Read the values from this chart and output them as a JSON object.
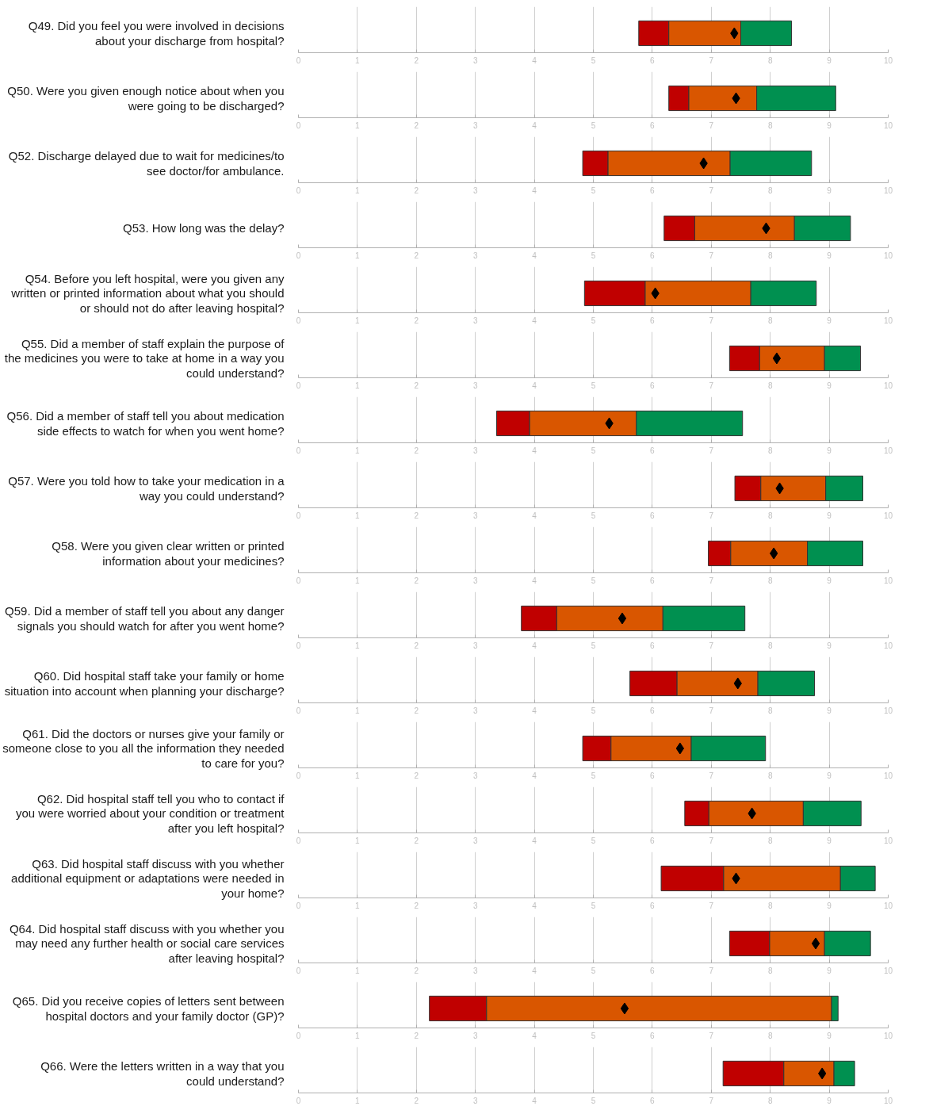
{
  "chart_data": [
    {
      "type": "bar",
      "orientation": "horizontal",
      "categories": [
        "Q49. Did you feel you were involved in decisions about your discharge from hospital?"
      ],
      "series": [
        {
          "color": "#c00000",
          "base": [
            5.77
          ],
          "values": [
            0.51
          ]
        },
        {
          "color": "#d95600",
          "base": [
            6.28
          ],
          "values": [
            1.22
          ]
        },
        {
          "color": "#009050",
          "base": [
            7.5
          ],
          "values": [
            0.86
          ]
        },
        {
          "type": "scatter",
          "marker": "diamond",
          "color": "#000000",
          "values": [
            7.39
          ]
        }
      ],
      "xlim": [
        0,
        10
      ],
      "xticks": [
        0,
        1,
        2,
        3,
        4,
        5,
        6,
        7,
        8,
        9,
        10
      ],
      "grid": "x"
    },
    {
      "type": "bar",
      "orientation": "horizontal",
      "categories": [
        "Q50. Were you given enough notice about when you were going to be discharged?"
      ],
      "series": [
        {
          "color": "#c00000",
          "base": [
            6.28
          ],
          "values": [
            0.34
          ]
        },
        {
          "color": "#d95600",
          "base": [
            6.62
          ],
          "values": [
            1.15
          ]
        },
        {
          "color": "#009050",
          "base": [
            7.77
          ],
          "values": [
            1.34
          ]
        },
        {
          "type": "scatter",
          "marker": "diamond",
          "color": "#000000",
          "values": [
            7.42
          ]
        }
      ],
      "xlim": [
        0,
        10
      ],
      "xticks": [
        0,
        1,
        2,
        3,
        4,
        5,
        6,
        7,
        8,
        9,
        10
      ],
      "grid": "x"
    },
    {
      "type": "bar",
      "orientation": "horizontal",
      "categories": [
        "Q52. Discharge delayed due to wait for medicines/to see doctor/for ambulance."
      ],
      "series": [
        {
          "color": "#c00000",
          "base": [
            4.82
          ],
          "values": [
            0.43
          ]
        },
        {
          "color": "#d95600",
          "base": [
            5.25
          ],
          "values": [
            2.07
          ]
        },
        {
          "color": "#009050",
          "base": [
            7.32
          ],
          "values": [
            1.38
          ]
        },
        {
          "type": "scatter",
          "marker": "diamond",
          "color": "#000000",
          "values": [
            6.87
          ]
        }
      ],
      "xlim": [
        0,
        10
      ],
      "xticks": [
        0,
        1,
        2,
        3,
        4,
        5,
        6,
        7,
        8,
        9,
        10
      ],
      "grid": "x"
    },
    {
      "type": "bar",
      "orientation": "horizontal",
      "categories": [
        "Q53. How long was the delay?"
      ],
      "series": [
        {
          "color": "#c00000",
          "base": [
            6.2
          ],
          "values": [
            0.52
          ]
        },
        {
          "color": "#d95600",
          "base": [
            6.72
          ],
          "values": [
            1.69
          ]
        },
        {
          "color": "#009050",
          "base": [
            8.41
          ],
          "values": [
            0.95
          ]
        },
        {
          "type": "scatter",
          "marker": "diamond",
          "color": "#000000",
          "values": [
            7.93
          ]
        }
      ],
      "xlim": [
        0,
        10
      ],
      "xticks": [
        0,
        1,
        2,
        3,
        4,
        5,
        6,
        7,
        8,
        9,
        10
      ],
      "grid": "x"
    },
    {
      "type": "bar",
      "orientation": "horizontal",
      "categories": [
        "Q54. Before you left hospital, were you given any written or printed information about what you should or should not do after leaving hospital?"
      ],
      "series": [
        {
          "color": "#c00000",
          "base": [
            4.85
          ],
          "values": [
            1.03
          ]
        },
        {
          "color": "#d95600",
          "base": [
            5.88
          ],
          "values": [
            1.79
          ]
        },
        {
          "color": "#009050",
          "base": [
            7.67
          ],
          "values": [
            1.11
          ]
        },
        {
          "type": "scatter",
          "marker": "diamond",
          "color": "#000000",
          "values": [
            6.05
          ]
        }
      ],
      "xlim": [
        0,
        10
      ],
      "xticks": [
        0,
        1,
        2,
        3,
        4,
        5,
        6,
        7,
        8,
        9,
        10
      ],
      "grid": "x"
    },
    {
      "type": "bar",
      "orientation": "horizontal",
      "categories": [
        "Q55. Did a member of staff explain the purpose of the medicines you were to take at home in a way you could understand?"
      ],
      "series": [
        {
          "color": "#c00000",
          "base": [
            7.31
          ],
          "values": [
            0.51
          ]
        },
        {
          "color": "#d95600",
          "base": [
            7.82
          ],
          "values": [
            1.1
          ]
        },
        {
          "color": "#009050",
          "base": [
            8.92
          ],
          "values": [
            0.61
          ]
        },
        {
          "type": "scatter",
          "marker": "diamond",
          "color": "#000000",
          "values": [
            8.11
          ]
        }
      ],
      "xlim": [
        0,
        10
      ],
      "xticks": [
        0,
        1,
        2,
        3,
        4,
        5,
        6,
        7,
        8,
        9,
        10
      ],
      "grid": "x"
    },
    {
      "type": "bar",
      "orientation": "horizontal",
      "categories": [
        "Q56. Did a member of staff tell you about medication side effects to watch for when you went home?"
      ],
      "series": [
        {
          "color": "#c00000",
          "base": [
            3.36
          ],
          "values": [
            0.56
          ]
        },
        {
          "color": "#d95600",
          "base": [
            3.92
          ],
          "values": [
            1.81
          ]
        },
        {
          "color": "#009050",
          "base": [
            5.73
          ],
          "values": [
            1.8
          ]
        },
        {
          "type": "scatter",
          "marker": "diamond",
          "color": "#000000",
          "values": [
            5.27
          ]
        }
      ],
      "xlim": [
        0,
        10
      ],
      "xticks": [
        0,
        1,
        2,
        3,
        4,
        5,
        6,
        7,
        8,
        9,
        10
      ],
      "grid": "x"
    },
    {
      "type": "bar",
      "orientation": "horizontal",
      "categories": [
        "Q57. Were you told how to take your medication in a way you could understand?"
      ],
      "series": [
        {
          "color": "#c00000",
          "base": [
            7.4
          ],
          "values": [
            0.44
          ]
        },
        {
          "color": "#d95600",
          "base": [
            7.84
          ],
          "values": [
            1.1
          ]
        },
        {
          "color": "#009050",
          "base": [
            8.94
          ],
          "values": [
            0.63
          ]
        },
        {
          "type": "scatter",
          "marker": "diamond",
          "color": "#000000",
          "values": [
            8.16
          ]
        }
      ],
      "xlim": [
        0,
        10
      ],
      "xticks": [
        0,
        1,
        2,
        3,
        4,
        5,
        6,
        7,
        8,
        9,
        10
      ],
      "grid": "x"
    },
    {
      "type": "bar",
      "orientation": "horizontal",
      "categories": [
        "Q58. Were you given clear written or printed information about your medicines?"
      ],
      "series": [
        {
          "color": "#c00000",
          "base": [
            6.95
          ],
          "values": [
            0.38
          ]
        },
        {
          "color": "#d95600",
          "base": [
            7.33
          ],
          "values": [
            1.3
          ]
        },
        {
          "color": "#009050",
          "base": [
            8.63
          ],
          "values": [
            0.94
          ]
        },
        {
          "type": "scatter",
          "marker": "diamond",
          "color": "#000000",
          "values": [
            8.06
          ]
        }
      ],
      "xlim": [
        0,
        10
      ],
      "xticks": [
        0,
        1,
        2,
        3,
        4,
        5,
        6,
        7,
        8,
        9,
        10
      ],
      "grid": "x"
    },
    {
      "type": "bar",
      "orientation": "horizontal",
      "categories": [
        "Q59. Did a member of staff tell you about any danger signals you should watch for after you went home?"
      ],
      "series": [
        {
          "color": "#c00000",
          "base": [
            3.78
          ],
          "values": [
            0.6
          ]
        },
        {
          "color": "#d95600",
          "base": [
            4.38
          ],
          "values": [
            1.8
          ]
        },
        {
          "color": "#009050",
          "base": [
            6.18
          ],
          "values": [
            1.39
          ]
        },
        {
          "type": "scatter",
          "marker": "diamond",
          "color": "#000000",
          "values": [
            5.49
          ]
        }
      ],
      "xlim": [
        0,
        10
      ],
      "xticks": [
        0,
        1,
        2,
        3,
        4,
        5,
        6,
        7,
        8,
        9,
        10
      ],
      "grid": "x"
    },
    {
      "type": "bar",
      "orientation": "horizontal",
      "categories": [
        "Q60. Did hospital staff take your family or home situation into account when planning your discharge?"
      ],
      "series": [
        {
          "color": "#c00000",
          "base": [
            5.62
          ],
          "values": [
            0.8
          ]
        },
        {
          "color": "#d95600",
          "base": [
            6.42
          ],
          "values": [
            1.37
          ]
        },
        {
          "color": "#009050",
          "base": [
            7.79
          ],
          "values": [
            0.96
          ]
        },
        {
          "type": "scatter",
          "marker": "diamond",
          "color": "#000000",
          "values": [
            7.45
          ]
        }
      ],
      "xlim": [
        0,
        10
      ],
      "xticks": [
        0,
        1,
        2,
        3,
        4,
        5,
        6,
        7,
        8,
        9,
        10
      ],
      "grid": "x"
    },
    {
      "type": "bar",
      "orientation": "horizontal",
      "categories": [
        "Q61. Did the doctors or nurses give your family or someone close to you all the information they needed to care for you?"
      ],
      "series": [
        {
          "color": "#c00000",
          "base": [
            4.82
          ],
          "values": [
            0.48
          ]
        },
        {
          "color": "#d95600",
          "base": [
            5.3
          ],
          "values": [
            1.36
          ]
        },
        {
          "color": "#009050",
          "base": [
            6.66
          ],
          "values": [
            1.26
          ]
        },
        {
          "type": "scatter",
          "marker": "diamond",
          "color": "#000000",
          "values": [
            6.47
          ]
        }
      ],
      "xlim": [
        0,
        10
      ],
      "xticks": [
        0,
        1,
        2,
        3,
        4,
        5,
        6,
        7,
        8,
        9,
        10
      ],
      "grid": "x"
    },
    {
      "type": "bar",
      "orientation": "horizontal",
      "categories": [
        "Q62. Did hospital staff tell you who to contact if you were worried about your condition or treatment after you left hospital?"
      ],
      "series": [
        {
          "color": "#c00000",
          "base": [
            6.55
          ],
          "values": [
            0.41
          ]
        },
        {
          "color": "#d95600",
          "base": [
            6.96
          ],
          "values": [
            1.6
          ]
        },
        {
          "color": "#009050",
          "base": [
            8.56
          ],
          "values": [
            0.98
          ]
        },
        {
          "type": "scatter",
          "marker": "diamond",
          "color": "#000000",
          "values": [
            7.69
          ]
        }
      ],
      "xlim": [
        0,
        10
      ],
      "xticks": [
        0,
        1,
        2,
        3,
        4,
        5,
        6,
        7,
        8,
        9,
        10
      ],
      "grid": "x"
    },
    {
      "type": "bar",
      "orientation": "horizontal",
      "categories": [
        "Q63. Did hospital staff discuss with you whether additional equipment or adaptations were needed in your home?"
      ],
      "series": [
        {
          "color": "#c00000",
          "base": [
            6.15
          ],
          "values": [
            1.06
          ]
        },
        {
          "color": "#d95600",
          "base": [
            7.21
          ],
          "values": [
            1.98
          ]
        },
        {
          "color": "#009050",
          "base": [
            9.19
          ],
          "values": [
            0.59
          ]
        },
        {
          "type": "scatter",
          "marker": "diamond",
          "color": "#000000",
          "values": [
            7.42
          ]
        }
      ],
      "xlim": [
        0,
        10
      ],
      "xticks": [
        0,
        1,
        2,
        3,
        4,
        5,
        6,
        7,
        8,
        9,
        10
      ],
      "grid": "x"
    },
    {
      "type": "bar",
      "orientation": "horizontal",
      "categories": [
        "Q64. Did hospital staff discuss with you whether you may need any further health or social care services after leaving hospital?"
      ],
      "series": [
        {
          "color": "#c00000",
          "base": [
            7.31
          ],
          "values": [
            0.68
          ]
        },
        {
          "color": "#d95600",
          "base": [
            7.99
          ],
          "values": [
            0.93
          ]
        },
        {
          "color": "#009050",
          "base": [
            8.92
          ],
          "values": [
            0.78
          ]
        },
        {
          "type": "scatter",
          "marker": "diamond",
          "color": "#000000",
          "values": [
            8.77
          ]
        }
      ],
      "xlim": [
        0,
        10
      ],
      "xticks": [
        0,
        1,
        2,
        3,
        4,
        5,
        6,
        7,
        8,
        9,
        10
      ],
      "grid": "x"
    },
    {
      "type": "bar",
      "orientation": "horizontal",
      "categories": [
        "Q65. Did you receive copies of letters sent between hospital doctors and your family doctor (GP)?"
      ],
      "series": [
        {
          "color": "#c00000",
          "base": [
            2.22
          ],
          "values": [
            0.97
          ]
        },
        {
          "color": "#d95600",
          "base": [
            3.19
          ],
          "values": [
            5.85
          ]
        },
        {
          "color": "#009050",
          "base": [
            9.04
          ],
          "values": [
            0.11
          ]
        },
        {
          "type": "scatter",
          "marker": "diamond",
          "color": "#000000",
          "values": [
            5.53
          ]
        }
      ],
      "xlim": [
        0,
        10
      ],
      "xticks": [
        0,
        1,
        2,
        3,
        4,
        5,
        6,
        7,
        8,
        9,
        10
      ],
      "grid": "x"
    },
    {
      "type": "bar",
      "orientation": "horizontal",
      "categories": [
        "Q66. Were the letters written in a way that you could understand?"
      ],
      "series": [
        {
          "color": "#c00000",
          "base": [
            7.2
          ],
          "values": [
            1.03
          ]
        },
        {
          "color": "#d95600",
          "base": [
            8.23
          ],
          "values": [
            0.85
          ]
        },
        {
          "color": "#009050",
          "base": [
            9.08
          ],
          "values": [
            0.35
          ]
        },
        {
          "type": "scatter",
          "marker": "diamond",
          "color": "#000000",
          "values": [
            8.88
          ]
        }
      ],
      "xlim": [
        0,
        10
      ],
      "xticks": [
        0,
        1,
        2,
        3,
        4,
        5,
        6,
        7,
        8,
        9,
        10
      ],
      "grid": "x"
    }
  ]
}
